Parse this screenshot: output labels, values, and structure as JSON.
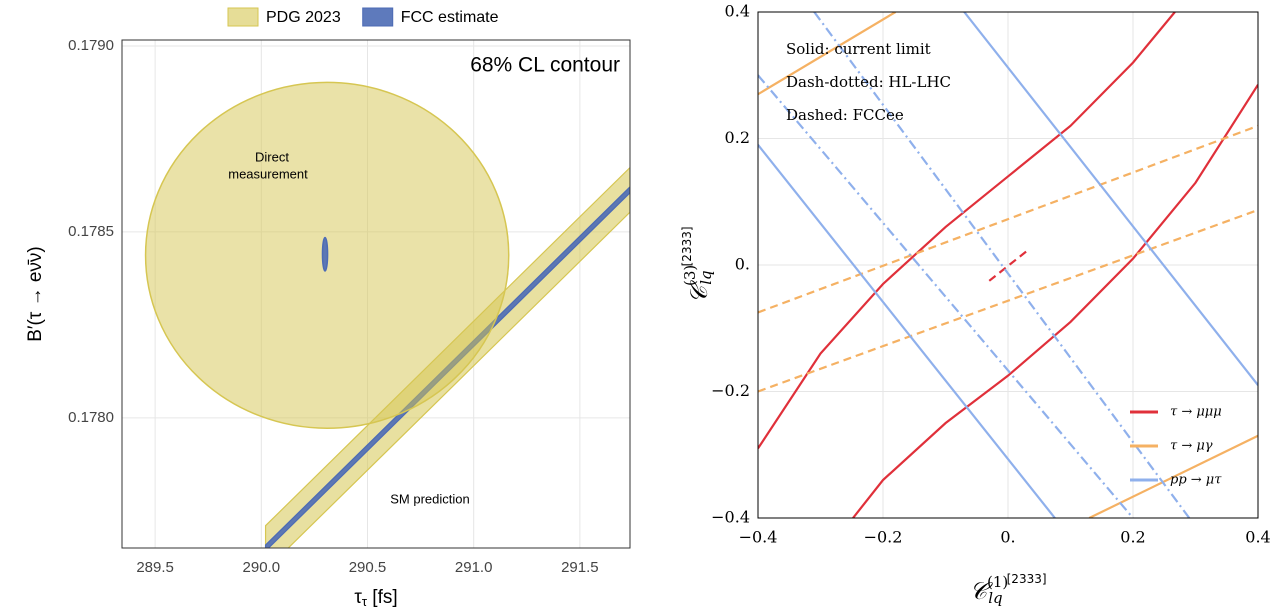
{
  "chart_data": [
    {
      "type": "contour",
      "title": "68% CL contour",
      "xlabel": {
        "symbol": "τ",
        "sub": "τ",
        "unit": "[fs]"
      },
      "ylabel": "B′(τ → eν̄ν)",
      "xlim": [
        289.344,
        291.736
      ],
      "ylim": [
        0.17765,
        0.179016
      ],
      "xticks": [
        289.5,
        {
          "value": 290.0,
          "label": "290.0"
        },
        290.5,
        {
          "value": 291.0,
          "label": "291.0"
        },
        291.5
      ],
      "yticks": [
        {
          "value": 0.178,
          "label": "0.1780"
        },
        {
          "value": 0.1785,
          "label": "0.1785"
        },
        {
          "value": 0.179,
          "label": "0.1790"
        }
      ],
      "grid": true,
      "legend": "top",
      "series": [
        {
          "name": "PDG 2023",
          "color": "#d6c652",
          "ellipse": {
            "cx": 290.31,
            "cy": 0.178437,
            "rx": 0.855,
            "ry": 0.000465
          },
          "band_halfwidth": 6e-05
        },
        {
          "name": "FCC estimate",
          "color": "#4c6bb5",
          "ellipse": {
            "cx": 290.3,
            "cy": 0.17844,
            "rx": 0.012,
            "ry": 4.5e-05
          },
          "band_halfwidth": 8e-06
        }
      ],
      "sm_prediction": {
        "x": [
          290.02,
          291.736
        ],
        "y": [
          0.17765,
          0.178613
        ]
      },
      "annotations": [
        "Direct",
        "measurement",
        "SM prediction"
      ]
    },
    {
      "type": "line",
      "xlabel": {
        "symbol": "𝒞",
        "sup": "(1)",
        "sub": "lq",
        "index": "[2333]"
      },
      "ylabel": {
        "symbol": "𝒞",
        "sup": "(3)",
        "sub": "lq",
        "index": "[2333]"
      },
      "xlim": [
        -0.4,
        0.4
      ],
      "ylim": [
        -0.4,
        0.4
      ],
      "xticks": [
        {
          "value": -0.4,
          "label": "−0.4"
        },
        {
          "value": -0.2,
          "label": "−0.2"
        },
        {
          "value": 0,
          "label": "0."
        },
        0.2,
        0.4
      ],
      "yticks": [
        {
          "value": -0.4,
          "label": "−0.4"
        },
        {
          "value": -0.2,
          "label": "−0.2"
        },
        {
          "value": 0,
          "label": "0."
        },
        0.2,
        0.4
      ],
      "grid": true,
      "legend": "lower right",
      "notes": [
        "Solid: current limit",
        "Dash-dotted: HL-LHC",
        "Dashed: FCCee"
      ],
      "series": [
        {
          "name": "τ → μμμ",
          "color": "#e0303a",
          "curves": [
            {
              "style": "solid",
              "x": [
                -0.4,
                -0.3,
                -0.2,
                -0.1,
                0,
                0.1,
                0.2,
                0.267
              ],
              "y": [
                -0.29,
                -0.14,
                -0.03,
                0.06,
                0.14,
                0.22,
                0.32,
                0.4
              ]
            },
            {
              "style": "solid",
              "x": [
                -0.248,
                -0.2,
                -0.1,
                0,
                0.1,
                0.2,
                0.3,
                0.4
              ],
              "y": [
                -0.4,
                -0.34,
                -0.25,
                -0.175,
                -0.09,
                0.01,
                0.13,
                0.285
              ]
            },
            {
              "style": "dashed",
              "x": [
                -0.03,
                0.03
              ],
              "y": [
                -0.025,
                0.022
              ]
            }
          ]
        },
        {
          "name": "τ → μγ",
          "color": "#f5b163",
          "curves": [
            {
              "style": "solid",
              "x": [
                -0.4,
                -0.18
              ],
              "y": [
                0.27,
                0.4
              ]
            },
            {
              "style": "solid",
              "x": [
                0.13,
                0.4
              ],
              "y": [
                -0.4,
                -0.27
              ]
            },
            {
              "style": "dashed",
              "x": [
                -0.4,
                0.4
              ],
              "y": [
                -0.075,
                0.22
              ]
            },
            {
              "style": "dashed",
              "x": [
                -0.4,
                0.4
              ],
              "y": [
                -0.2,
                0.087
              ]
            }
          ]
        },
        {
          "name": "pp → μτ",
          "color": "#8fb0ec",
          "curves": [
            {
              "style": "solid",
              "x": [
                -0.4,
                0.075
              ],
              "y": [
                0.19,
                -0.4
              ]
            },
            {
              "style": "solid",
              "x": [
                -0.07,
                0.4
              ],
              "y": [
                0.4,
                -0.19
              ]
            },
            {
              "style": "dashdot",
              "x": [
                -0.4,
                0.2
              ],
              "y": [
                0.3,
                -0.4
              ]
            },
            {
              "style": "dashdot",
              "x": [
                -0.31,
                0.29
              ],
              "y": [
                0.4,
                -0.4
              ]
            }
          ]
        }
      ]
    }
  ]
}
